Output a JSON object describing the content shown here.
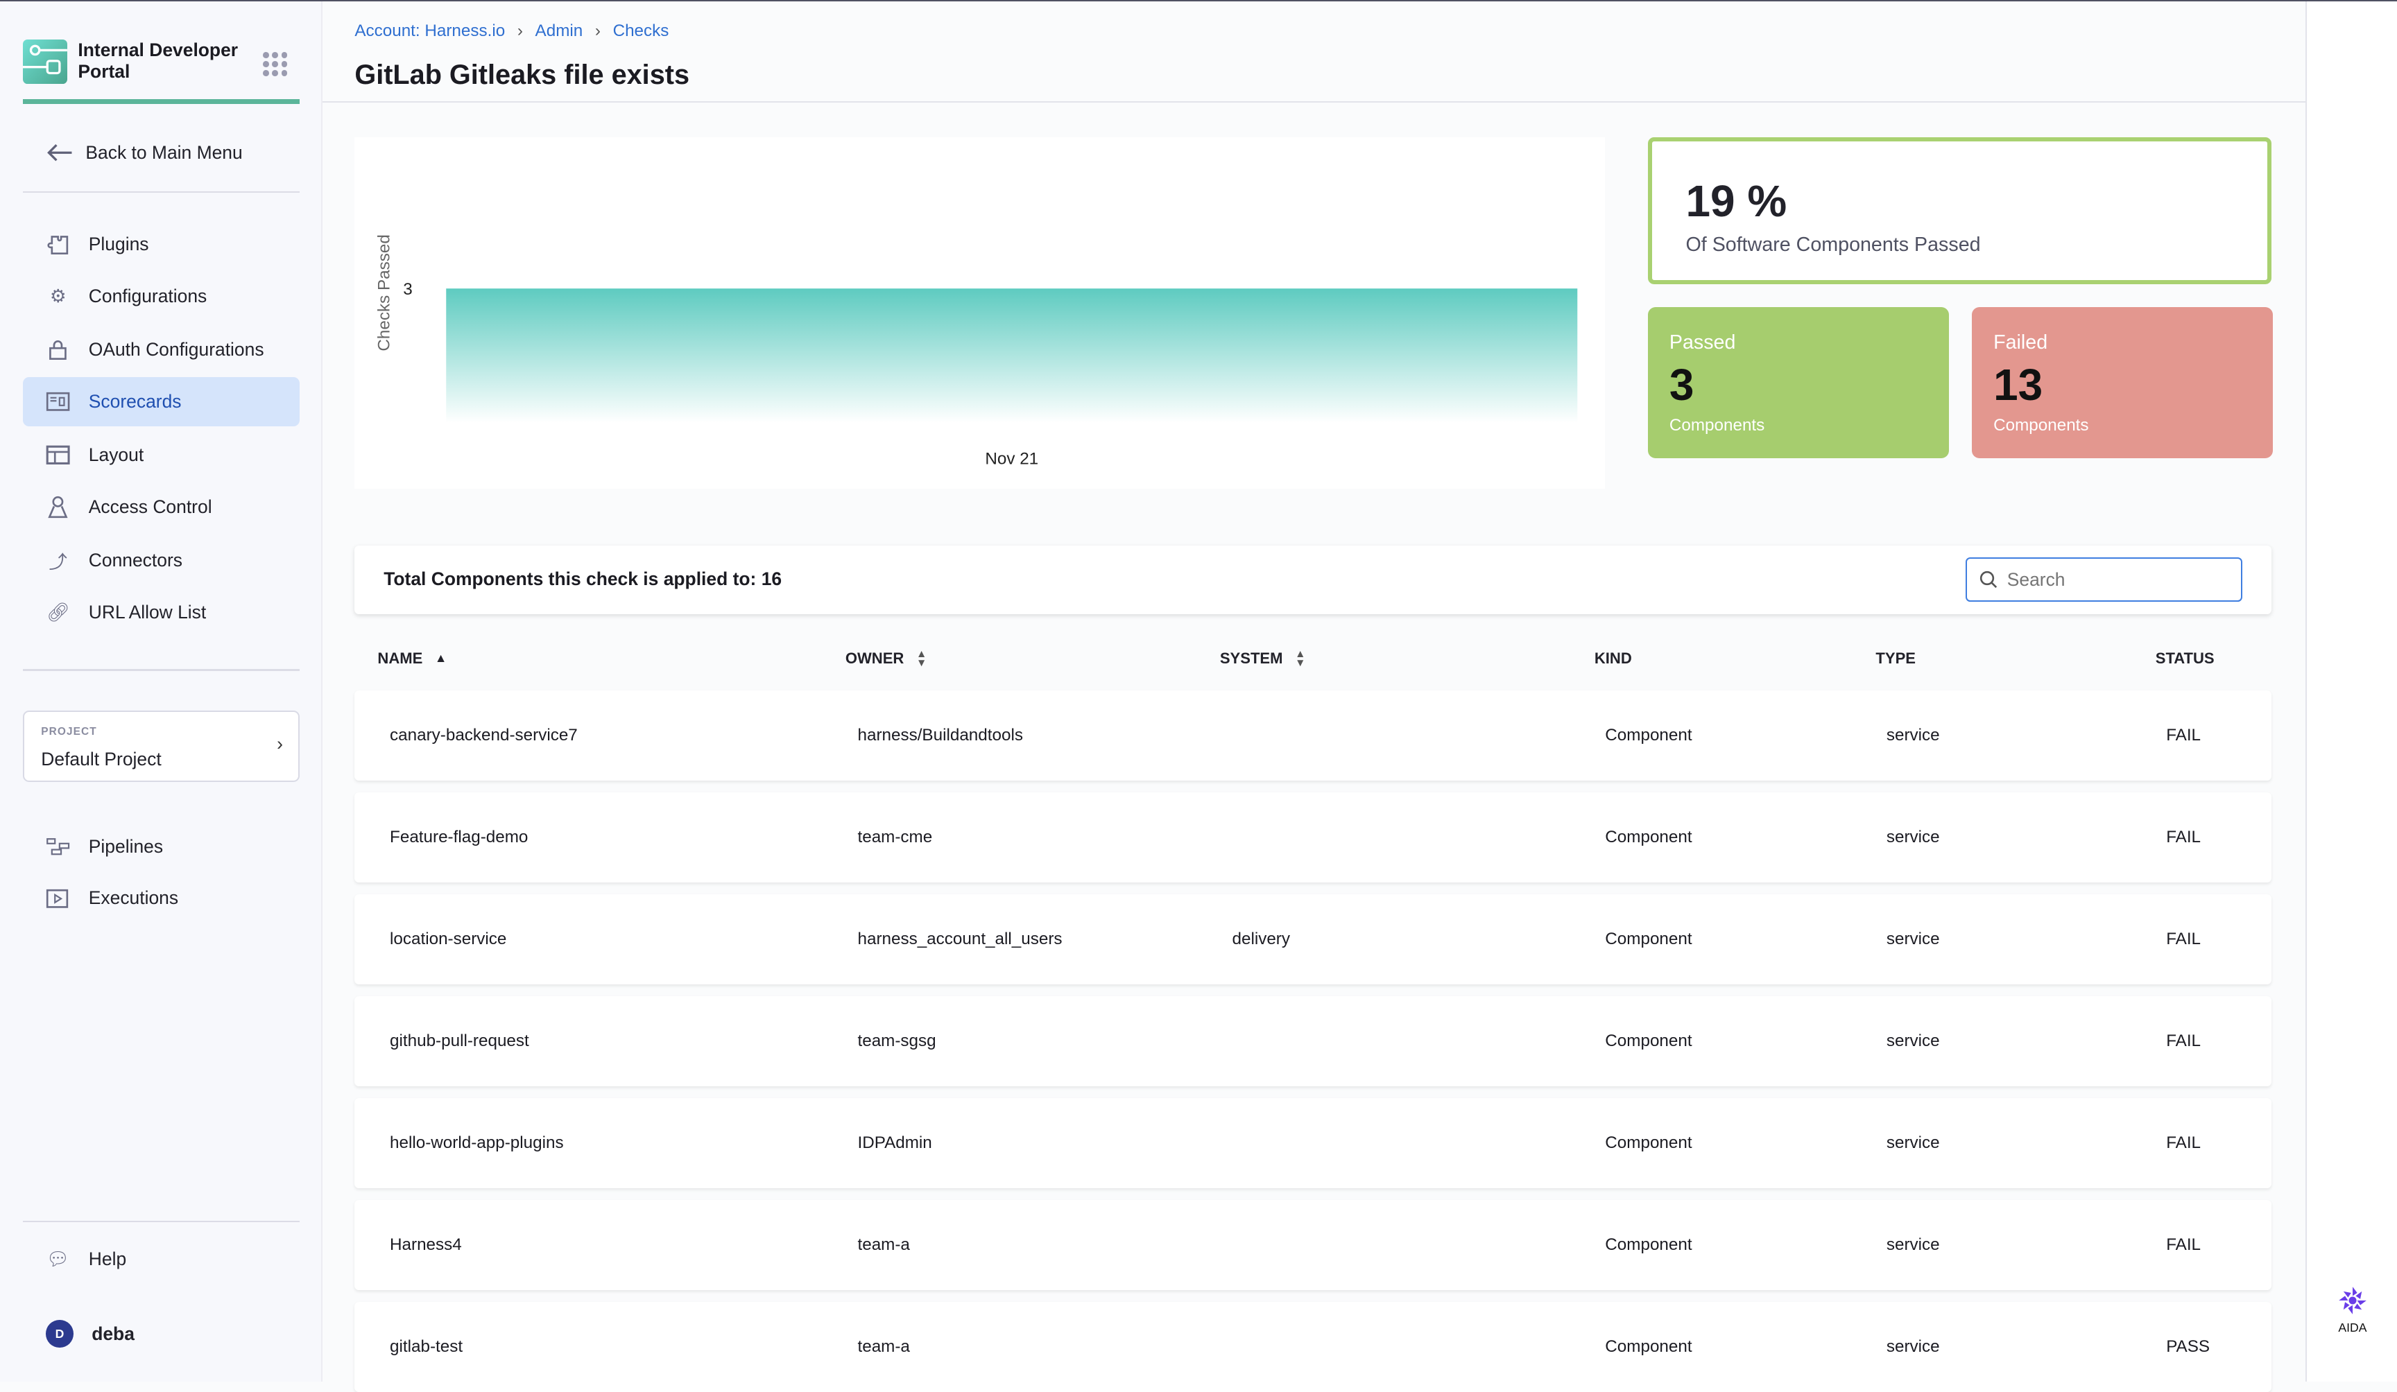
{
  "sidebar": {
    "brand": "Internal Developer Portal",
    "back": "Back to Main Menu",
    "items": [
      {
        "label": "Plugins",
        "icon": "puzzle-icon"
      },
      {
        "label": "Configurations",
        "icon": "gears-icon"
      },
      {
        "label": "OAuth Configurations",
        "icon": "lock-icon"
      },
      {
        "label": "Scorecards",
        "icon": "scorecard-icon",
        "active": true
      },
      {
        "label": "Layout",
        "icon": "layout-icon"
      },
      {
        "label": "Access Control",
        "icon": "user-icon"
      },
      {
        "label": "Connectors",
        "icon": "connector-icon"
      },
      {
        "label": "URL Allow List",
        "icon": "link-icon"
      }
    ],
    "project": {
      "label": "PROJECT",
      "value": "Default Project"
    },
    "project_items": [
      {
        "label": "Pipelines",
        "icon": "pipeline-icon"
      },
      {
        "label": "Executions",
        "icon": "execution-icon"
      }
    ],
    "help": "Help",
    "user": {
      "initial": "D",
      "name": "deba"
    }
  },
  "header": {
    "breadcrumbs": [
      "Account: Harness.io",
      "Admin",
      "Checks"
    ],
    "title": "GitLab Gitleaks file exists"
  },
  "chart_data": {
    "type": "area",
    "x": [
      "Nov 21"
    ],
    "y": [
      3
    ],
    "ylabel": "Checks Passed",
    "yticks": [
      3
    ],
    "color": "#5ecbc0"
  },
  "stats": {
    "percent": "19 %",
    "percent_label": "Of Software Components Passed",
    "passed": {
      "label": "Passed",
      "value": "3",
      "unit": "Components",
      "color": "#a6cd6e"
    },
    "failed": {
      "label": "Failed",
      "value": "13",
      "unit": "Components",
      "color": "#e3978f"
    }
  },
  "table": {
    "summary": "Total Components this check is applied to: 16",
    "search_placeholder": "Search",
    "columns": [
      "NAME",
      "OWNER",
      "SYSTEM",
      "KIND",
      "TYPE",
      "STATUS"
    ],
    "rows": [
      {
        "name": "canary-backend-service7",
        "owner": "harness/Buildandtools",
        "system": "",
        "kind": "Component",
        "type": "service",
        "status": "FAIL"
      },
      {
        "name": "Feature-flag-demo",
        "owner": "team-cme",
        "system": "",
        "kind": "Component",
        "type": "service",
        "status": "FAIL"
      },
      {
        "name": "location-service",
        "owner": "harness_account_all_users",
        "system": "delivery",
        "kind": "Component",
        "type": "service",
        "status": "FAIL"
      },
      {
        "name": "github-pull-request",
        "owner": "team-sgsg",
        "system": "",
        "kind": "Component",
        "type": "service",
        "status": "FAIL"
      },
      {
        "name": "hello-world-app-plugins",
        "owner": "IDPAdmin",
        "system": "",
        "kind": "Component",
        "type": "service",
        "status": "FAIL"
      },
      {
        "name": "Harness4",
        "owner": "team-a",
        "system": "",
        "kind": "Component",
        "type": "service",
        "status": "FAIL"
      },
      {
        "name": "gitlab-test",
        "owner": "team-a",
        "system": "",
        "kind": "Component",
        "type": "service",
        "status": "PASS"
      }
    ]
  },
  "rail": {
    "aida": "AIDA"
  }
}
